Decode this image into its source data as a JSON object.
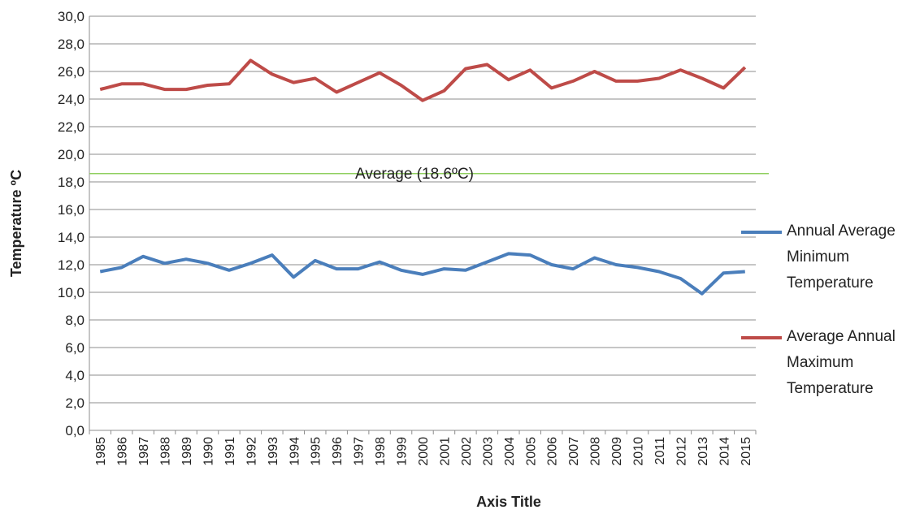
{
  "chart_data": {
    "type": "line",
    "y_axis_label": "Temperature ºC",
    "x_axis_label": "Axis Title",
    "categories": [
      "1985",
      "1986",
      "1987",
      "1988",
      "1989",
      "1990",
      "1991",
      "1992",
      "1993",
      "1994",
      "1995",
      "1996",
      "1997",
      "1998",
      "1999",
      "2000",
      "2001",
      "2002",
      "2003",
      "2004",
      "2005",
      "2006",
      "2007",
      "2008",
      "2009",
      "2010",
      "2011",
      "2012",
      "2013",
      "2014",
      "2015"
    ],
    "series": [
      {
        "name": "Annual Average Minimum Temperature",
        "color": "#4a7ebb",
        "values": [
          11.5,
          11.8,
          12.6,
          12.1,
          12.4,
          12.1,
          11.6,
          12.1,
          12.7,
          11.1,
          12.3,
          11.7,
          11.7,
          12.2,
          11.6,
          11.3,
          11.7,
          11.6,
          12.2,
          12.8,
          12.7,
          12.0,
          11.7,
          12.5,
          12.0,
          11.8,
          11.5,
          11.0,
          9.9,
          11.4,
          11.5
        ]
      },
      {
        "name": "Average Annual Maximum Temperature",
        "color": "#be4b48",
        "values": [
          24.7,
          25.1,
          25.1,
          24.7,
          24.7,
          25.0,
          25.1,
          26.8,
          25.8,
          25.2,
          25.5,
          24.5,
          25.2,
          25.9,
          25.0,
          23.9,
          24.6,
          26.2,
          26.5,
          25.4,
          26.1,
          24.8,
          25.3,
          26.0,
          25.3,
          25.3,
          25.5,
          26.1,
          25.5,
          24.8,
          26.3
        ]
      }
    ],
    "average_line": {
      "value": 18.6,
      "label": "Average (18.6ºC)",
      "color": "#8fcf5f"
    },
    "ylim": [
      0,
      30
    ],
    "yticks": [
      {
        "value": 0,
        "label": "0,0"
      },
      {
        "value": 2,
        "label": "2,0"
      },
      {
        "value": 4,
        "label": "4,0"
      },
      {
        "value": 6,
        "label": "6,0"
      },
      {
        "value": 8,
        "label": "8,0"
      },
      {
        "value": 10,
        "label": "10,0"
      },
      {
        "value": 12,
        "label": "12,0"
      },
      {
        "value": 14,
        "label": "14,0"
      },
      {
        "value": 16,
        "label": "16,0"
      },
      {
        "value": 18,
        "label": "18,0"
      },
      {
        "value": 20,
        "label": "20,0"
      },
      {
        "value": 22,
        "label": "22,0"
      },
      {
        "value": 24,
        "label": "24,0"
      },
      {
        "value": 26,
        "label": "26,0"
      },
      {
        "value": 28,
        "label": "28,0"
      },
      {
        "value": 30,
        "label": "30,0"
      }
    ],
    "grid": true,
    "legend_position": "right"
  }
}
